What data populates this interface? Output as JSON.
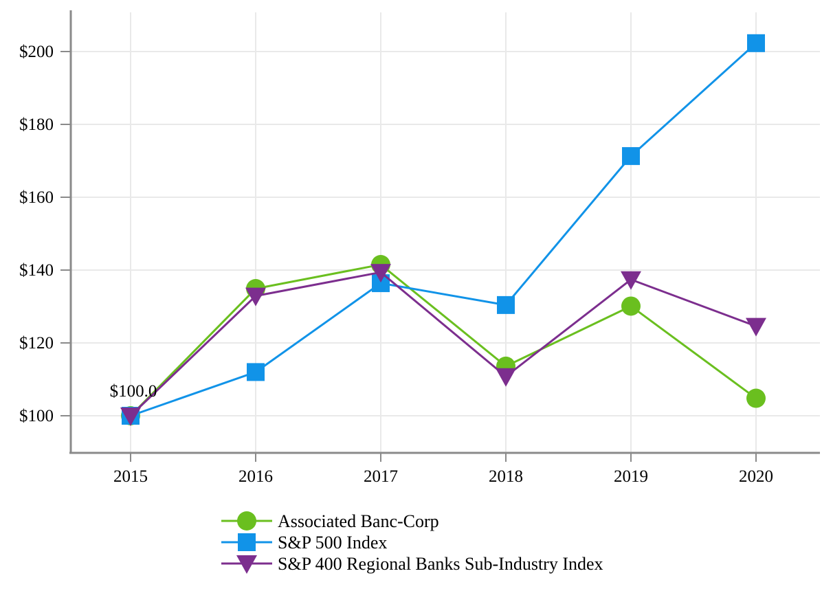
{
  "chart_data": {
    "type": "line",
    "title": "",
    "xlabel": "",
    "ylabel": "",
    "x": [
      "2015",
      "2016",
      "2017",
      "2018",
      "2019",
      "2020"
    ],
    "series": [
      {
        "name": "Associated Banc-Corp",
        "marker": "circle",
        "color": "#6abf1f",
        "values": [
          100.0,
          134.9,
          141.5,
          113.6,
          130.1,
          104.8
        ]
      },
      {
        "name": "S&P 500 Index",
        "marker": "square",
        "color": "#1193e8",
        "values": [
          100.0,
          112.0,
          136.4,
          130.4,
          171.3,
          202.3
        ]
      },
      {
        "name": "S&P 400 Regional Banks Sub-Industry Index",
        "marker": "triangle-down",
        "color": "#7c2e8e",
        "values": [
          100.0,
          132.9,
          139.4,
          110.8,
          137.4,
          124.6
        ]
      }
    ],
    "y_ticks": [
      {
        "value": 100,
        "label": "$100"
      },
      {
        "value": 120,
        "label": "$120"
      },
      {
        "value": 140,
        "label": "$140"
      },
      {
        "value": 160,
        "label": "$160"
      },
      {
        "value": 180,
        "label": "$180"
      },
      {
        "value": 200,
        "label": "$200"
      }
    ],
    "ylim": [
      100,
      205
    ],
    "grid": true,
    "legend_position": "bottom",
    "annotation": {
      "text": "$100.0",
      "x": "2015",
      "y": 100
    },
    "colors": {
      "axis": "#8a8a8a",
      "gridline": "#e9e9e9",
      "background": "#ffffff",
      "text": "#000000"
    }
  }
}
